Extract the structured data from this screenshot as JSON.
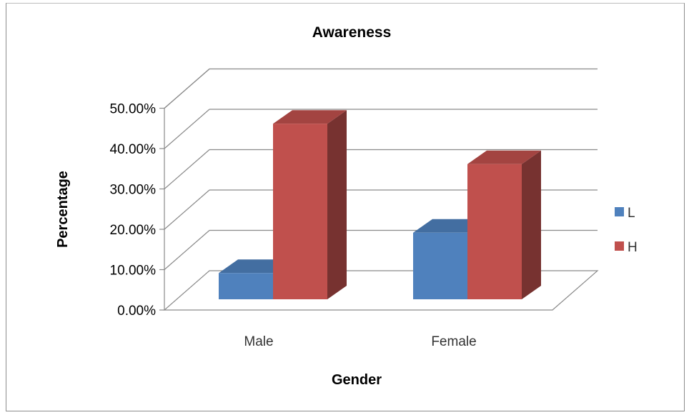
{
  "chart_data": {
    "type": "bar",
    "title": "Awareness",
    "xlabel": "Gender",
    "ylabel": "Percentage",
    "categories": [
      "Male",
      "Female"
    ],
    "series": [
      {
        "name": "L",
        "values": [
          6.5,
          16.5
        ],
        "color": "#4f81bd"
      },
      {
        "name": "H",
        "values": [
          43.5,
          33.5
        ],
        "color": "#c0504d"
      }
    ],
    "ylim": [
      0,
      50
    ],
    "yticks": [
      "0.00%",
      "10.00%",
      "20.00%",
      "30.00%",
      "40.00%",
      "50.00%"
    ],
    "grid": true,
    "legend_position": "right",
    "style": "3d-clustered-column"
  }
}
